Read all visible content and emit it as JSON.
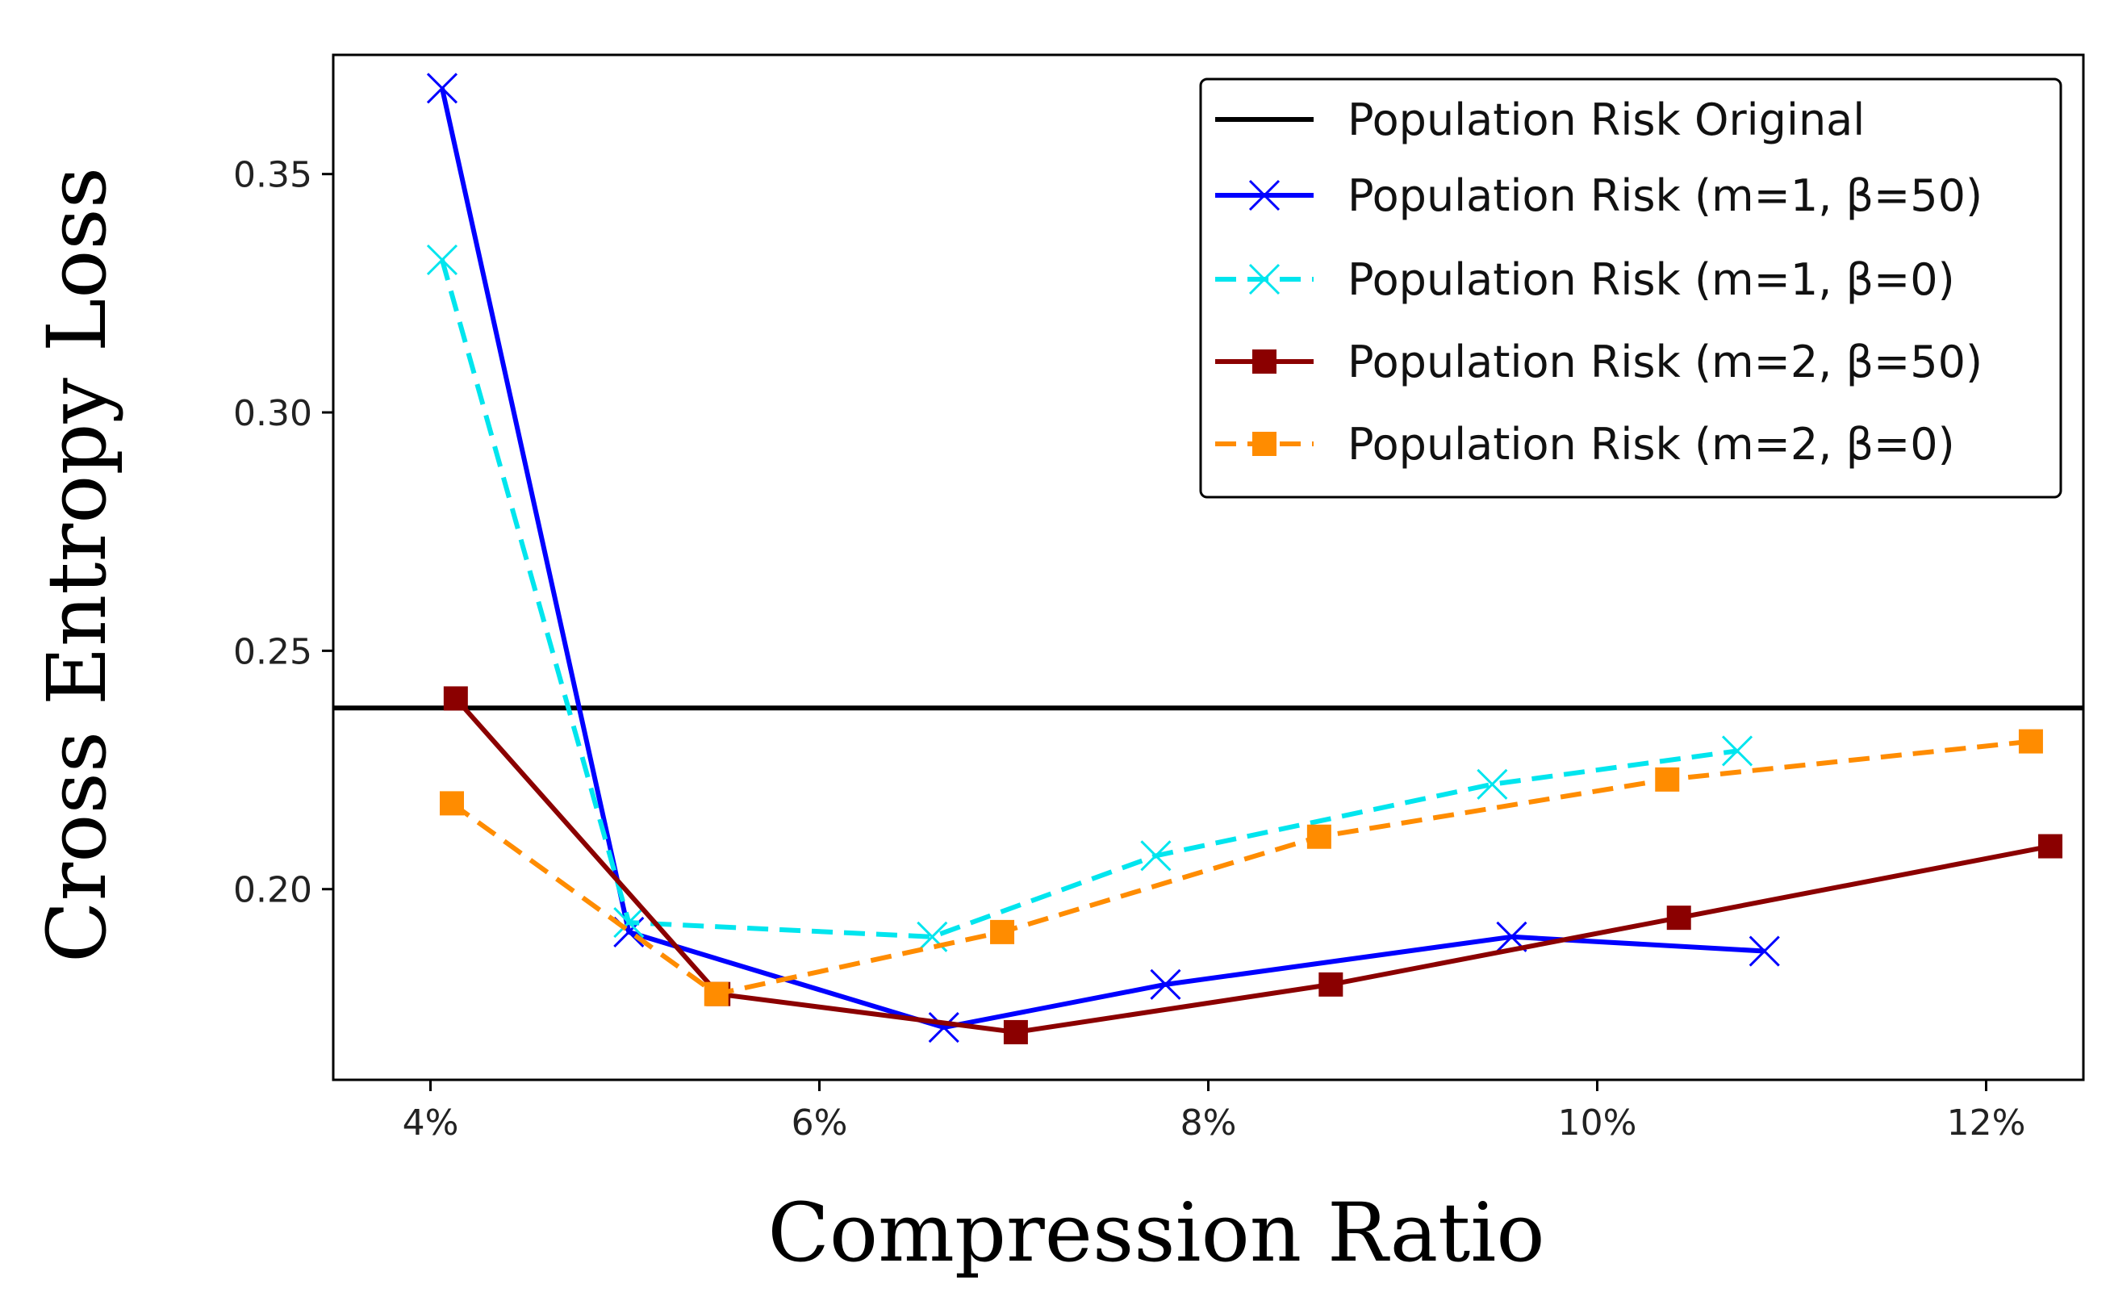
{
  "chart_data": {
    "type": "line",
    "xlabel": "Compression Ratio",
    "ylabel": "Cross Entropy Loss",
    "xlim": [
      3.5,
      12.5
    ],
    "ylim": [
      0.16,
      0.375
    ],
    "x_ticks": [
      4,
      6,
      8,
      10,
      12
    ],
    "x_tick_labels": [
      "4%",
      "6%",
      "8%",
      "10%",
      "12%"
    ],
    "y_ticks": [
      0.2,
      0.25,
      0.3,
      0.35
    ],
    "y_tick_labels": [
      "0.20",
      "0.25",
      "0.30",
      "0.35"
    ],
    "grid": false,
    "legend_position": "top-right",
    "hline": {
      "name": "Population Risk Original",
      "y": 0.238,
      "color": "#000000"
    },
    "series": [
      {
        "name": "Population Risk (m=1, β=50)",
        "color": "#0000ff",
        "linestyle": "solid",
        "marker": "x",
        "x": [
          4.06,
          5.02,
          6.64,
          7.78,
          9.56,
          10.86
        ],
        "y": [
          0.368,
          0.191,
          0.171,
          0.18,
          0.19,
          0.187
        ]
      },
      {
        "name": "Population Risk (m=1, β=0)",
        "color": "#00e5ee",
        "linestyle": "dashed",
        "marker": "x",
        "x": [
          4.06,
          5.02,
          6.58,
          7.73,
          9.46,
          10.72
        ],
        "y": [
          0.332,
          0.193,
          0.19,
          0.207,
          0.222,
          0.229
        ]
      },
      {
        "name": "Population Risk (m=2, β=50)",
        "color": "#8b0000",
        "linestyle": "solid",
        "marker": "square",
        "x": [
          4.13,
          5.48,
          7.01,
          8.63,
          10.42,
          12.33
        ],
        "y": [
          0.24,
          0.178,
          0.17,
          0.18,
          0.194,
          0.209
        ]
      },
      {
        "name": "Population Risk (m=2, β=0)",
        "color": "#ff8c00",
        "linestyle": "dashed",
        "marker": "square",
        "x": [
          4.11,
          5.47,
          6.94,
          8.57,
          10.36,
          12.23
        ],
        "y": [
          0.218,
          0.178,
          0.191,
          0.211,
          0.223,
          0.231
        ]
      }
    ]
  }
}
